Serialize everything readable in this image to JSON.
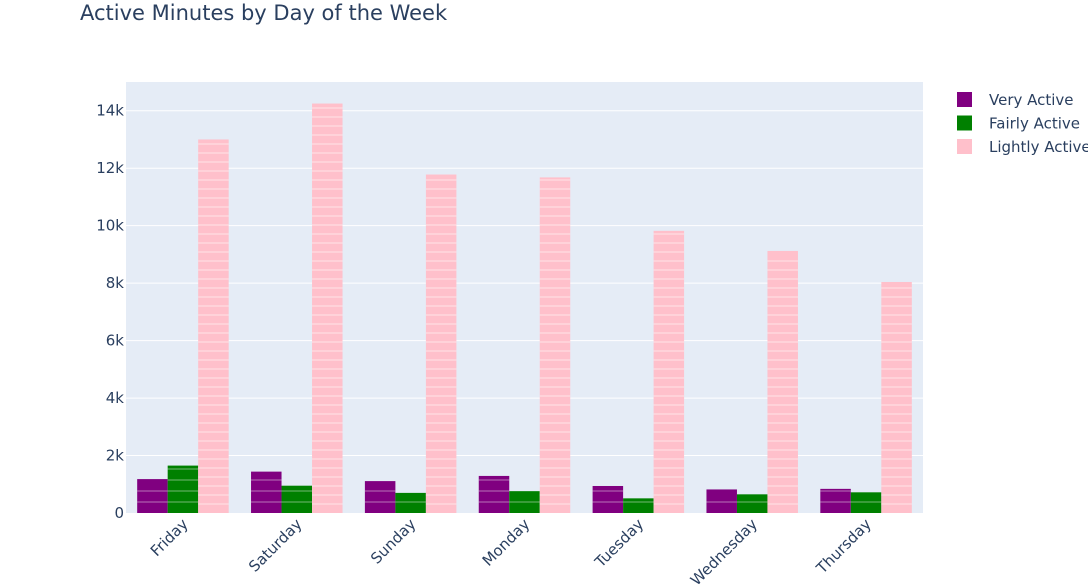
{
  "chart_data": {
    "type": "bar",
    "title": "Active Minutes by Day of the Week",
    "xlabel": "",
    "ylabel": "",
    "categories": [
      "Friday",
      "Saturday",
      "Sunday",
      "Monday",
      "Tuesday",
      "Wednesday",
      "Thursday"
    ],
    "series": [
      {
        "name": "Very Active",
        "color": "#800080",
        "values": [
          1180,
          1440,
          1110,
          1290,
          940,
          820,
          840
        ]
      },
      {
        "name": "Fairly Active",
        "color": "#008000",
        "values": [
          1650,
          950,
          700,
          760,
          510,
          650,
          720
        ]
      },
      {
        "name": "Lightly Active",
        "color": "#ffc0cb",
        "values": [
          13000,
          14250,
          11780,
          11680,
          9820,
          9120,
          8040
        ]
      }
    ],
    "ylim": [
      0,
      15000
    ],
    "yticks": [
      0,
      2000,
      4000,
      6000,
      8000,
      10000,
      12000,
      14000
    ],
    "ytick_labels": [
      "0",
      "2k",
      "4k",
      "6k",
      "8k",
      "10k",
      "12k",
      "14k"
    ],
    "grid": true,
    "legend_position": "top-right",
    "plot_background": "#e5ecf6"
  }
}
